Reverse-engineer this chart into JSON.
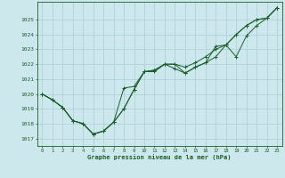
{
  "background_color": "#cce8ec",
  "grid_color": "#aacdd4",
  "line_color": "#1a5c2a",
  "xlabel": "Graphe pression niveau de la mer (hPa)",
  "ylim": [
    1016.5,
    1026.2
  ],
  "xlim": [
    -0.5,
    23.5
  ],
  "yticks": [
    1017,
    1018,
    1019,
    1020,
    1021,
    1022,
    1023,
    1024,
    1025
  ],
  "xticks": [
    0,
    1,
    2,
    3,
    4,
    5,
    6,
    7,
    8,
    9,
    10,
    11,
    12,
    13,
    14,
    15,
    16,
    17,
    18,
    19,
    20,
    21,
    22,
    23
  ],
  "series": [
    [
      1020.0,
      1019.6,
      1019.1,
      1018.2,
      1018.0,
      1017.3,
      1017.5,
      1018.1,
      1020.4,
      1020.5,
      1021.5,
      1021.6,
      1022.0,
      1021.7,
      1021.4,
      1021.8,
      1022.1,
      1023.2,
      1023.3,
      1024.0,
      1024.6,
      1025.0,
      1025.1,
      1025.8
    ],
    [
      1020.0,
      1019.6,
      1019.1,
      1018.2,
      1018.0,
      1017.3,
      1017.5,
      1018.1,
      1019.0,
      1020.3,
      1021.5,
      1021.6,
      1022.0,
      1022.0,
      1021.8,
      1022.1,
      1022.5,
      1023.0,
      1023.3,
      1024.0,
      1024.6,
      1025.0,
      1025.1,
      1025.8
    ],
    [
      1020.0,
      1019.6,
      1019.1,
      1018.2,
      1018.0,
      1017.3,
      1017.5,
      1018.1,
      1019.0,
      1020.3,
      1021.5,
      1021.5,
      1022.0,
      1022.0,
      1021.4,
      1021.8,
      1022.1,
      1022.5,
      1023.3,
      1022.5,
      1023.9,
      1024.6,
      1025.1,
      1025.8
    ]
  ]
}
